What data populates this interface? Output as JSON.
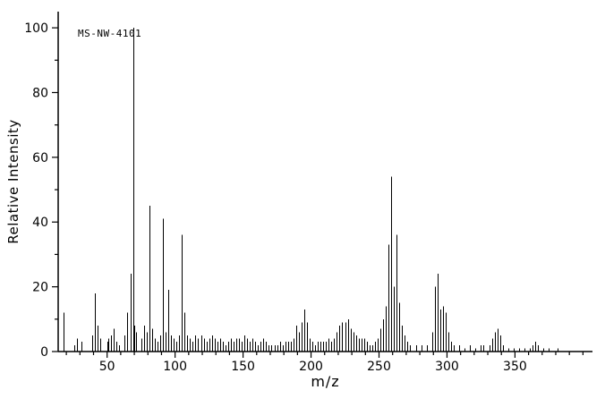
{
  "chart_data": {
    "type": "bar",
    "subtype": "mass-spectrum-stick-plot",
    "annotation": "MS-NW-4101",
    "xlabel": "m/z",
    "ylabel": "Relative Intensity",
    "xlim": [
      14,
      407
    ],
    "ylim": [
      0,
      105
    ],
    "x_major_ticks": [
      50,
      100,
      150,
      200,
      250,
      300,
      350
    ],
    "x_minor_tick_step": 10,
    "y_major_ticks": [
      0,
      20,
      40,
      60,
      80,
      100
    ],
    "y_minor_tick_step": 10,
    "grid": false,
    "legend": false,
    "line_color": "#000000",
    "axis_color": "#000000",
    "background_color": "#ffffff",
    "base_peak": {
      "mz": 69,
      "intensity": 100
    },
    "peaks": [
      [
        18,
        12
      ],
      [
        26,
        2
      ],
      [
        28,
        4
      ],
      [
        31,
        3
      ],
      [
        39,
        5
      ],
      [
        41,
        18
      ],
      [
        43,
        8
      ],
      [
        45,
        4
      ],
      [
        50,
        3
      ],
      [
        51,
        4
      ],
      [
        53,
        5
      ],
      [
        55,
        7
      ],
      [
        57,
        3
      ],
      [
        59,
        2
      ],
      [
        63,
        5
      ],
      [
        65,
        12
      ],
      [
        67,
        24
      ],
      [
        69,
        100
      ],
      [
        70,
        8
      ],
      [
        71,
        6
      ],
      [
        75,
        4
      ],
      [
        77,
        8
      ],
      [
        79,
        6
      ],
      [
        81,
        45
      ],
      [
        83,
        7
      ],
      [
        85,
        4
      ],
      [
        87,
        3
      ],
      [
        89,
        5
      ],
      [
        91,
        41
      ],
      [
        93,
        6
      ],
      [
        95,
        19
      ],
      [
        97,
        5
      ],
      [
        99,
        4
      ],
      [
        101,
        3
      ],
      [
        103,
        5
      ],
      [
        105,
        36
      ],
      [
        107,
        12
      ],
      [
        109,
        5
      ],
      [
        111,
        4
      ],
      [
        113,
        3
      ],
      [
        115,
        5
      ],
      [
        117,
        4
      ],
      [
        119,
        5
      ],
      [
        121,
        4
      ],
      [
        123,
        3
      ],
      [
        125,
        4
      ],
      [
        127,
        5
      ],
      [
        129,
        4
      ],
      [
        131,
        3
      ],
      [
        133,
        4
      ],
      [
        135,
        3
      ],
      [
        137,
        2
      ],
      [
        139,
        3
      ],
      [
        141,
        4
      ],
      [
        143,
        3
      ],
      [
        145,
        4
      ],
      [
        147,
        4
      ],
      [
        149,
        3
      ],
      [
        151,
        5
      ],
      [
        153,
        4
      ],
      [
        155,
        3
      ],
      [
        157,
        4
      ],
      [
        159,
        3
      ],
      [
        161,
        2
      ],
      [
        163,
        3
      ],
      [
        165,
        4
      ],
      [
        167,
        3
      ],
      [
        169,
        2
      ],
      [
        171,
        2
      ],
      [
        173,
        2
      ],
      [
        175,
        2
      ],
      [
        177,
        3
      ],
      [
        179,
        2
      ],
      [
        181,
        3
      ],
      [
        183,
        3
      ],
      [
        185,
        3
      ],
      [
        187,
        4
      ],
      [
        189,
        8
      ],
      [
        191,
        6
      ],
      [
        193,
        9
      ],
      [
        195,
        13
      ],
      [
        197,
        9
      ],
      [
        199,
        4
      ],
      [
        201,
        3
      ],
      [
        203,
        2
      ],
      [
        205,
        3
      ],
      [
        207,
        3
      ],
      [
        209,
        3
      ],
      [
        211,
        3
      ],
      [
        213,
        4
      ],
      [
        215,
        3
      ],
      [
        217,
        4
      ],
      [
        219,
        6
      ],
      [
        221,
        8
      ],
      [
        223,
        9
      ],
      [
        225,
        9
      ],
      [
        227,
        10
      ],
      [
        229,
        7
      ],
      [
        231,
        6
      ],
      [
        233,
        5
      ],
      [
        235,
        4
      ],
      [
        237,
        4
      ],
      [
        239,
        4
      ],
      [
        241,
        3
      ],
      [
        243,
        2
      ],
      [
        245,
        2
      ],
      [
        247,
        3
      ],
      [
        249,
        4
      ],
      [
        251,
        7
      ],
      [
        253,
        10
      ],
      [
        255,
        14
      ],
      [
        257,
        33
      ],
      [
        259,
        54
      ],
      [
        261,
        20
      ],
      [
        263,
        36
      ],
      [
        265,
        15
      ],
      [
        267,
        8
      ],
      [
        269,
        5
      ],
      [
        271,
        3
      ],
      [
        273,
        2
      ],
      [
        277,
        2
      ],
      [
        281,
        2
      ],
      [
        285,
        2
      ],
      [
        289,
        6
      ],
      [
        291,
        20
      ],
      [
        293,
        24
      ],
      [
        295,
        13
      ],
      [
        297,
        14
      ],
      [
        299,
        12
      ],
      [
        301,
        6
      ],
      [
        303,
        3
      ],
      [
        305,
        2
      ],
      [
        309,
        2
      ],
      [
        313,
        1
      ],
      [
        317,
        2
      ],
      [
        321,
        1
      ],
      [
        325,
        2
      ],
      [
        327,
        2
      ],
      [
        331,
        2
      ],
      [
        333,
        4
      ],
      [
        335,
        6
      ],
      [
        337,
        7
      ],
      [
        339,
        5
      ],
      [
        341,
        2
      ],
      [
        345,
        1
      ],
      [
        349,
        1
      ],
      [
        353,
        1
      ],
      [
        357,
        1
      ],
      [
        361,
        1
      ],
      [
        363,
        2
      ],
      [
        365,
        3
      ],
      [
        367,
        2
      ],
      [
        371,
        1
      ],
      [
        375,
        1
      ],
      [
        381,
        1
      ]
    ]
  }
}
